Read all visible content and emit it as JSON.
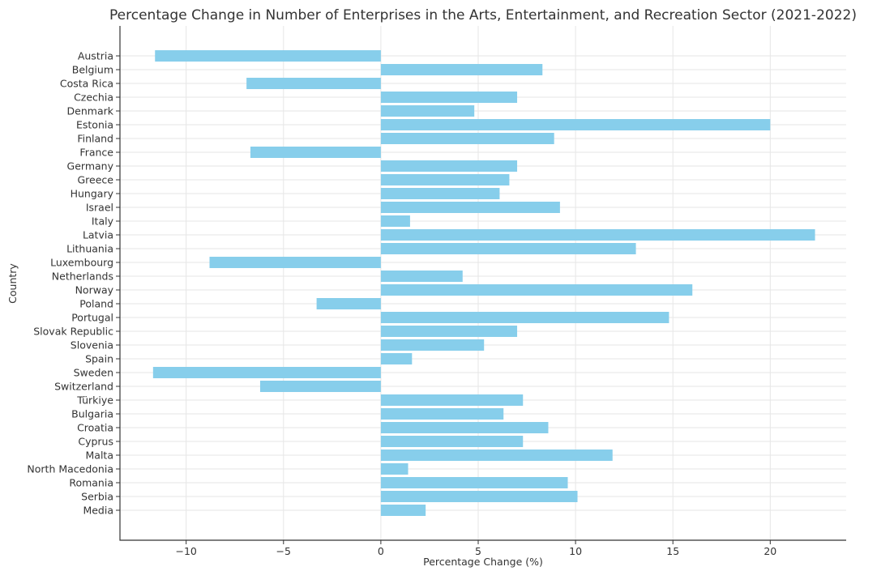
{
  "chart_data": {
    "type": "bar",
    "orientation": "horizontal",
    "title": "Percentage Change in Number of Enterprises in the Arts, Entertainment, and Recreation Sector (2021-2022)",
    "xlabel": "Percentage Change (%)",
    "ylabel": "Country",
    "xlim": [
      -13.4,
      23.9
    ],
    "xticks": [
      -10,
      -5,
      0,
      5,
      10,
      15,
      20
    ],
    "xtick_labels": [
      "−10",
      "−5",
      "0",
      "5",
      "10",
      "15",
      "20"
    ],
    "grid": true,
    "bar_color": "#87ceeb",
    "categories": [
      "Austria",
      "Belgium",
      "Costa Rica",
      "Czechia",
      "Denmark",
      "Estonia",
      "Finland",
      "France",
      "Germany",
      "Greece",
      "Hungary",
      "Israel",
      "Italy",
      "Latvia",
      "Lithuania",
      "Luxembourg",
      "Netherlands",
      "Norway",
      "Poland",
      "Portugal",
      "Slovak Republic",
      "Slovenia",
      "Spain",
      "Sweden",
      "Switzerland",
      "Türkiye",
      "Bulgaria",
      "Croatia",
      "Cyprus",
      "Malta",
      "North Macedonia",
      "Romania",
      "Serbia",
      "Media"
    ],
    "values": [
      -11.6,
      8.3,
      -6.9,
      7.0,
      4.8,
      20.0,
      8.9,
      -6.7,
      7.0,
      6.6,
      6.1,
      9.2,
      1.5,
      22.3,
      13.1,
      -8.8,
      4.2,
      16.0,
      -3.3,
      14.8,
      7.0,
      5.3,
      1.6,
      -11.7,
      -6.2,
      7.3,
      6.3,
      8.6,
      7.3,
      11.9,
      1.4,
      9.6,
      10.1,
      2.3
    ]
  }
}
